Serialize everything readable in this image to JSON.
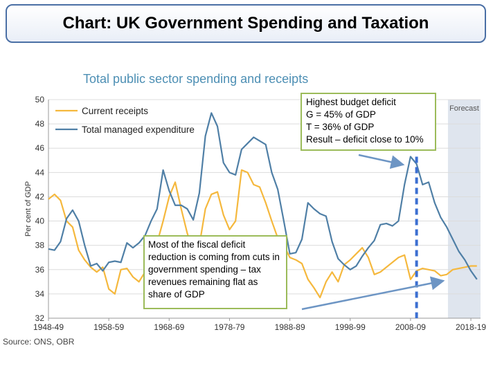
{
  "header": {
    "title": "Chart: UK Government Spending and Taxation"
  },
  "source": "Source: ONS, OBR",
  "callouts": {
    "deficit": {
      "lines": [
        "Highest budget deficit",
        "G = 45% of GDP",
        "T = 36% of GDP",
        "Result – deficit close to 10%"
      ]
    },
    "reduction": {
      "text": "Most of the fiscal deficit reduction is coming from cuts in government spending – tax revenues remaining flat as share of GDP"
    }
  },
  "colors": {
    "receipts": "#f5b83d",
    "expenditure": "#4f7fa6",
    "forecast_band": "#dfe5ee",
    "marker": "#3c6fd1",
    "callout_border": "#9bbb59"
  },
  "chart_data": {
    "type": "line",
    "title": "Total public sector spending and receipts",
    "ylabel": "Per cent of GDP",
    "xlabel": "",
    "ylim": [
      32,
      50
    ],
    "yticks": [
      32,
      34,
      36,
      38,
      40,
      42,
      44,
      46,
      48,
      50
    ],
    "xticks": [
      "1948-49",
      "1958-59",
      "1968-69",
      "1978-79",
      "1988-89",
      "1998-99",
      "2008-09",
      "2018-19"
    ],
    "x": [
      1948,
      1949,
      1950,
      1951,
      1952,
      1953,
      1954,
      1955,
      1956,
      1957,
      1958,
      1959,
      1960,
      1961,
      1962,
      1963,
      1964,
      1965,
      1966,
      1967,
      1968,
      1969,
      1970,
      1971,
      1972,
      1973,
      1974,
      1975,
      1976,
      1977,
      1978,
      1979,
      1980,
      1981,
      1982,
      1983,
      1984,
      1985,
      1986,
      1987,
      1988,
      1989,
      1990,
      1991,
      1992,
      1993,
      1994,
      1995,
      1996,
      1997,
      1998,
      1999,
      2000,
      2001,
      2002,
      2003,
      2004,
      2005,
      2006,
      2007,
      2008,
      2009,
      2010,
      2011,
      2012,
      2013,
      2014,
      2015,
      2016,
      2017,
      2018,
      2019
    ],
    "series": [
      {
        "name": "Current receipts",
        "values": [
          41.8,
          42.2,
          41.7,
          40.0,
          39.5,
          37.6,
          36.8,
          36.2,
          35.8,
          36.2,
          34.4,
          34.0,
          36.0,
          36.1,
          35.4,
          35.0,
          35.8,
          36.8,
          38.2,
          40.0,
          42.0,
          43.2,
          41.0,
          39.0,
          37.5,
          38.0,
          41.0,
          42.2,
          42.4,
          40.5,
          39.3,
          40.0,
          44.2,
          44.0,
          43.0,
          42.8,
          41.5,
          40.0,
          38.6,
          38.0,
          37.0,
          36.8,
          36.5,
          35.2,
          34.5,
          33.7,
          35.0,
          35.8,
          35.0,
          36.4,
          36.8,
          37.3,
          37.8,
          37.0,
          35.6,
          35.8,
          36.2,
          36.6,
          37.0,
          37.2,
          35.2,
          35.9,
          36.1,
          36.0,
          35.9,
          35.5,
          35.6,
          36.0,
          36.1,
          36.2,
          36.3,
          36.3
        ]
      },
      {
        "name": "Total managed expenditure",
        "values": [
          37.7,
          37.6,
          38.3,
          40.2,
          40.9,
          40.0,
          38.0,
          36.3,
          36.5,
          35.9,
          36.6,
          36.7,
          36.6,
          38.2,
          37.8,
          38.2,
          38.8,
          40.0,
          41.0,
          44.2,
          42.5,
          41.3,
          41.3,
          41.0,
          40.1,
          42.3,
          47.0,
          48.9,
          47.8,
          44.8,
          44.0,
          43.8,
          45.9,
          46.4,
          46.9,
          46.6,
          46.3,
          44.0,
          42.6,
          40.0,
          37.3,
          37.4,
          38.5,
          41.5,
          41.0,
          40.6,
          40.4,
          38.3,
          36.9,
          36.4,
          36.0,
          36.3,
          37.1,
          37.8,
          38.4,
          39.7,
          39.8,
          39.6,
          40.0,
          43.0,
          45.3,
          44.7,
          43.0,
          43.2,
          41.5,
          40.3,
          39.5,
          38.5,
          37.5,
          36.8,
          35.9,
          35.2
        ]
      }
    ],
    "forecast_from": 2014,
    "forecast_label": "Forecast",
    "legend_position": "top-left",
    "grid": "horizontal"
  }
}
